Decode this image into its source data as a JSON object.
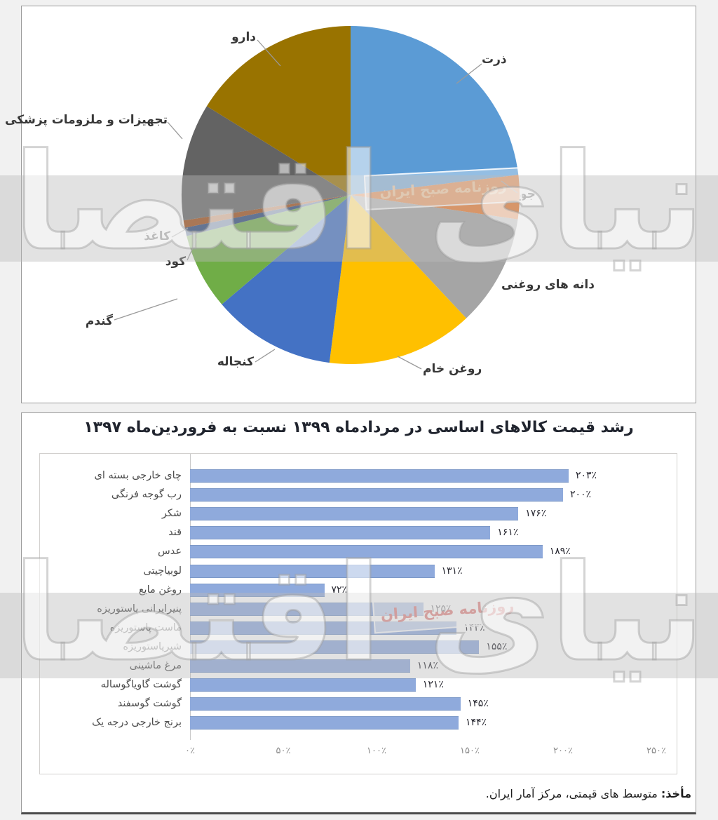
{
  "watermark": {
    "brand_text": "دنیای اقتصاد",
    "stamp_text": "روزنامه صبح ایران"
  },
  "bottom_panel": {
    "source_prefix": "مأخذ:",
    "source_rest": " متوسط های قیمتی، مرکز آمار ایران."
  },
  "chart_data": [
    {
      "type": "pie",
      "title": "",
      "start": "12-oclock-clockwise",
      "labels": [
        "ذرت",
        "جو",
        "دانه های روغنی",
        "روغن خام",
        "کنجاله",
        "گندم",
        "کود",
        "کاغذ",
        "تجهیزات و ملزومات پزشکی",
        "دارو"
      ],
      "values_pct": [
        23.1,
        4.2,
        10.7,
        14.0,
        11.8,
        7.3,
        0.8,
        0.7,
        11.2,
        16.2
      ],
      "colors": [
        "#5B9BD5",
        "#ED7D31",
        "#A5A5A5",
        "#FFC000",
        "#4472C4",
        "#70AD47",
        "#264478",
        "#9E480E",
        "#636363",
        "#997300"
      ]
    },
    {
      "type": "bar",
      "orientation": "horizontal",
      "title": "رشد قیمت کالاهای اساسی در مردادماه ۱۳۹۹ نسبت به فروردین‌ماه ۱۳۹۷",
      "categories": [
        "چای خارجی بسته ای",
        "رب گوجه فرنگی",
        "شکر",
        "قند",
        "عدس",
        "لوبیاچیتی",
        "روغن مایع",
        "پنیرایرانی پاستوریزه",
        "ماست پاستوریزه",
        "شیرپاستوریزه",
        "مرغ ماشینی",
        "گوشت گاویاگوساله",
        "گوشت گوسفند",
        "برنج خارجی درجه یک"
      ],
      "values": [
        203,
        200,
        176,
        161,
        189,
        131,
        72,
        125,
        143,
        155,
        118,
        121,
        145,
        144
      ],
      "value_labels": [
        "۲۰۳٪",
        "۲۰۰٪",
        "۱۷۶٪",
        "۱۶۱٪",
        "۱۸۹٪",
        "۱۳۱٪",
        "۷۲٪",
        "۱۲۵٪",
        "۱۴۳٪",
        "۱۵۵٪",
        "۱۱۸٪",
        "۱۲۱٪",
        "۱۴۵٪",
        "۱۴۴٪"
      ],
      "x_ticks": [
        "۰٪",
        "۵۰٪",
        "۱۰۰٪",
        "۱۵۰٪",
        "۲۰۰٪",
        "۲۵۰٪"
      ],
      "xlim": [
        0,
        250
      ],
      "grid": false,
      "legend": false,
      "bar_color": "#8FAADC",
      "source": "مأخذ: متوسط های قیمتی، مرکز آمار ایران."
    }
  ]
}
